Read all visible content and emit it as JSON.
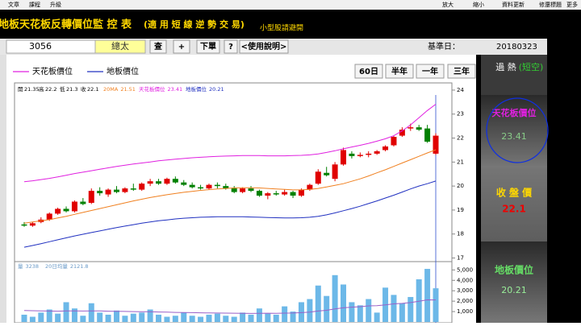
{
  "toolbar": {
    "left": [
      "文章",
      "課程",
      "升級"
    ],
    "right": [
      "放大",
      "縮小",
      "資料更新",
      "修還標題",
      "更多"
    ]
  },
  "header": {
    "title": "地板天花板反轉價位監 控 表",
    "subtitle": "(適 用 短 線 逆 勢 交 易)",
    "note": "小型股請避開"
  },
  "controls": {
    "code": "3056",
    "name": "總太",
    "buttons": [
      "查",
      "+",
      "下單",
      "?",
      "<使用說明>"
    ],
    "date_label": "基準日：",
    "date": "20180323"
  },
  "range_buttons": [
    "60日",
    "半年",
    "一年",
    "三年"
  ],
  "side_panel": {
    "status": "過 熱",
    "status_note": "(短空)",
    "close_label": "收 盤 價"
  },
  "chart_data": [
    {
      "type": "candlestick",
      "ohlc_labels": [
        "開",
        "高",
        "低",
        "收"
      ],
      "up_color": "#e00000",
      "down_color": "#008000",
      "open": [
        18.4,
        18.35,
        18.5,
        18.6,
        18.85,
        19.05,
        18.95,
        19.35,
        19.3,
        19.8,
        19.65,
        19.85,
        19.75,
        19.9,
        19.85,
        20.1,
        20.2,
        20.1,
        20.3,
        20.15,
        20.05,
        19.95,
        19.9,
        20.05,
        20.0,
        19.9,
        19.75,
        19.9,
        19.8,
        19.6,
        19.7,
        19.65,
        19.75,
        19.6,
        19.85,
        20.1,
        20.55,
        20.3,
        20.9,
        21.35,
        21.25,
        21.3,
        21.35,
        21.5,
        21.7,
        22.1,
        22.4,
        22.45,
        22.4,
        21.35
      ],
      "high": [
        18.5,
        18.5,
        18.7,
        18.9,
        19.1,
        19.15,
        19.4,
        19.5,
        19.9,
        19.95,
        19.9,
        20.0,
        19.95,
        20.1,
        20.15,
        20.3,
        20.3,
        20.35,
        20.4,
        20.25,
        20.15,
        20.05,
        20.1,
        20.15,
        20.1,
        20.0,
        19.95,
        20.0,
        19.85,
        19.75,
        19.8,
        19.85,
        19.8,
        19.9,
        20.1,
        20.7,
        20.8,
        21.0,
        21.6,
        21.45,
        21.4,
        21.45,
        21.5,
        21.7,
        22.1,
        22.45,
        22.6,
        22.55,
        22.55,
        22.2
      ],
      "low": [
        18.3,
        18.3,
        18.45,
        18.55,
        18.8,
        18.9,
        18.9,
        19.2,
        19.25,
        19.6,
        19.55,
        19.7,
        19.7,
        19.8,
        19.8,
        20.0,
        20.05,
        20.05,
        20.1,
        20.0,
        19.9,
        19.85,
        19.85,
        19.9,
        19.85,
        19.7,
        19.7,
        19.75,
        19.55,
        19.45,
        19.6,
        19.6,
        19.5,
        19.55,
        19.8,
        20.05,
        20.4,
        20.2,
        20.85,
        21.15,
        21.2,
        21.2,
        21.3,
        21.45,
        21.65,
        22.05,
        22.3,
        22.3,
        21.8,
        21.3
      ],
      "close": [
        18.35,
        18.45,
        18.6,
        18.85,
        19.05,
        18.95,
        19.35,
        19.25,
        19.8,
        19.7,
        19.85,
        19.75,
        19.9,
        19.85,
        20.1,
        20.2,
        20.1,
        20.3,
        20.15,
        20.05,
        19.95,
        19.9,
        20.05,
        20.0,
        19.9,
        19.75,
        19.9,
        19.8,
        19.6,
        19.7,
        19.65,
        19.75,
        19.6,
        19.85,
        20.05,
        20.6,
        20.45,
        20.9,
        21.5,
        21.25,
        21.3,
        21.35,
        21.45,
        21.65,
        22.05,
        22.35,
        22.45,
        22.35,
        21.85,
        22.1
      ],
      "series": [
        {
          "name": "天花板價位",
          "color": "#e020e0",
          "values": [
            20.18,
            20.22,
            20.27,
            20.32,
            20.38,
            20.45,
            20.52,
            20.58,
            20.64,
            20.7,
            20.76,
            20.82,
            20.87,
            20.92,
            20.96,
            21.0,
            21.05,
            21.09,
            21.12,
            21.15,
            21.18,
            21.2,
            21.22,
            21.24,
            21.25,
            21.26,
            21.27,
            21.27,
            21.27,
            21.26,
            21.26,
            21.26,
            21.27,
            21.28,
            21.3,
            21.34,
            21.4,
            21.47,
            21.55,
            21.63,
            21.7,
            21.78,
            21.87,
            21.97,
            22.1,
            22.3,
            22.55,
            22.85,
            23.15,
            23.41
          ]
        },
        {
          "name": "地板價位",
          "color": "#2030c0",
          "values": [
            17.45,
            17.52,
            17.6,
            17.68,
            17.76,
            17.84,
            17.92,
            17.99,
            18.06,
            18.13,
            18.2,
            18.27,
            18.33,
            18.39,
            18.45,
            18.5,
            18.55,
            18.59,
            18.63,
            18.66,
            18.68,
            18.7,
            18.71,
            18.72,
            18.72,
            18.72,
            18.72,
            18.71,
            18.7,
            18.69,
            18.68,
            18.67,
            18.67,
            18.68,
            18.7,
            18.74,
            18.8,
            18.88,
            18.97,
            19.06,
            19.16,
            19.27,
            19.38,
            19.5,
            19.62,
            19.75,
            19.88,
            20.0,
            20.1,
            20.21
          ]
        },
        {
          "name": "20MA",
          "color": "#f08020",
          "values": [
            18.45,
            18.5,
            18.55,
            18.6,
            18.67,
            18.74,
            18.82,
            18.9,
            18.98,
            19.06,
            19.14,
            19.22,
            19.3,
            19.38,
            19.45,
            19.52,
            19.58,
            19.64,
            19.69,
            19.74,
            19.78,
            19.82,
            19.85,
            19.88,
            19.9,
            19.92,
            19.93,
            19.93,
            19.92,
            19.9,
            19.88,
            19.86,
            19.84,
            19.84,
            19.86,
            19.9,
            19.96,
            20.03,
            20.1,
            20.2,
            20.3,
            20.42,
            20.55,
            20.68,
            20.82,
            20.96,
            21.1,
            21.24,
            21.38,
            21.51
          ]
        }
      ],
      "ylim": [
        16.85,
        24.3
      ],
      "yticks": [
        17,
        18,
        19,
        20,
        21,
        22,
        23,
        24
      ]
    },
    {
      "type": "bar",
      "series": [
        {
          "name": "量",
          "color": "#6cb8e8",
          "values": [
            700,
            500,
            900,
            1200,
            800,
            1900,
            1300,
            600,
            1800,
            900,
            700,
            1100,
            600,
            800,
            900,
            1200,
            700,
            500,
            600,
            900,
            600,
            500,
            700,
            800,
            600,
            500,
            900,
            700,
            1300,
            800,
            700,
            1500,
            1000,
            1900,
            2200,
            3500,
            2500,
            4500,
            3600,
            1900,
            1600,
            2200,
            900,
            3300,
            2600,
            1800,
            2400,
            4100,
            5100,
            3238
          ]
        },
        {
          "name": "20日均量",
          "color": "#9a60c8",
          "values": [
            1100,
            1080,
            1060,
            1050,
            1040,
            1060,
            1070,
            1050,
            1070,
            1060,
            1040,
            1030,
            1010,
            1000,
            990,
            980,
            960,
            940,
            920,
            910,
            900,
            880,
            870,
            860,
            850,
            840,
            830,
            820,
            830,
            840,
            830,
            850,
            860,
            900,
            950,
            1050,
            1120,
            1250,
            1360,
            1420,
            1470,
            1550,
            1560,
            1650,
            1740,
            1790,
            1860,
            1990,
            2130,
            2121.8
          ]
        }
      ],
      "ylim": [
        0,
        5800
      ],
      "yticks": [
        {
          "value": 1000,
          "label": "1,000"
        },
        {
          "value": 2000,
          "label": "2,000"
        },
        {
          "value": 3000,
          "label": "3,000"
        },
        {
          "value": 4000,
          "label": "4,000"
        },
        {
          "value": 5000,
          "label": "5,000"
        }
      ]
    }
  ]
}
